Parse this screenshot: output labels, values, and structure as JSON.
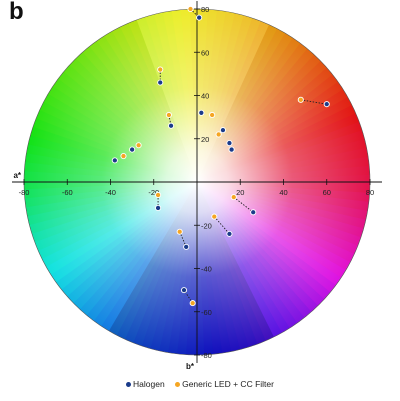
{
  "panel_label": "b",
  "chart_data": {
    "type": "scatter",
    "title": "",
    "xlabel": "a*",
    "ylabel": "b*",
    "xlim": [
      -80,
      80
    ],
    "ylim": [
      -80,
      80
    ],
    "x_ticks": [
      -80,
      -60,
      -40,
      -20,
      20,
      40,
      60,
      80
    ],
    "y_ticks": [
      80,
      60,
      40,
      20,
      -20,
      -40,
      -60,
      -80
    ],
    "background": "CIELAB a*b* color wheel",
    "legend": {
      "placement": "bottom"
    },
    "series": [
      {
        "name": "Halogen",
        "color": "#1a3b8a",
        "points": [
          [
            1,
            76
          ],
          [
            -17,
            46
          ],
          [
            -12,
            26
          ],
          [
            2,
            32
          ],
          [
            12,
            24
          ],
          [
            15,
            18
          ],
          [
            16,
            15
          ],
          [
            -38,
            10
          ],
          [
            -30,
            15
          ],
          [
            26,
            -14
          ],
          [
            60,
            36
          ],
          [
            -18,
            -12
          ],
          [
            15,
            -24
          ],
          [
            -5,
            -30
          ],
          [
            -6,
            -50
          ]
        ]
      },
      {
        "name": "Generic LED + CC Filter",
        "color": "#f5a623",
        "points": [
          [
            -3,
            80
          ],
          [
            -17,
            52
          ],
          [
            -13,
            31
          ],
          [
            7,
            31
          ],
          [
            10,
            22
          ],
          [
            -34,
            12
          ],
          [
            -27,
            17
          ],
          [
            17,
            -7
          ],
          [
            8,
            -16
          ],
          [
            -18,
            -6
          ],
          [
            -8,
            -23
          ],
          [
            -2,
            -56
          ],
          [
            48,
            38
          ]
        ]
      }
    ],
    "pairs": [
      [
        [
          -3,
          80
        ],
        [
          1,
          76
        ]
      ],
      [
        [
          -17,
          52
        ],
        [
          -17,
          46
        ]
      ],
      [
        [
          -13,
          31
        ],
        [
          -12,
          26
        ]
      ],
      [
        [
          17,
          -7
        ],
        [
          26,
          -14
        ]
      ],
      [
        [
          8,
          -16
        ],
        [
          15,
          -24
        ]
      ],
      [
        [
          -8,
          -23
        ],
        [
          -5,
          -30
        ]
      ],
      [
        [
          -2,
          -56
        ],
        [
          -6,
          -50
        ]
      ],
      [
        [
          48,
          38
        ],
        [
          60,
          36
        ]
      ],
      [
        [
          -18,
          -6
        ],
        [
          -18,
          -12
        ]
      ]
    ]
  },
  "legend": {
    "halogen_label": "Halogen",
    "led_label": "Generic LED + CC Filter",
    "halogen_color": "#1a3b8a",
    "led_color": "#f5a623"
  }
}
